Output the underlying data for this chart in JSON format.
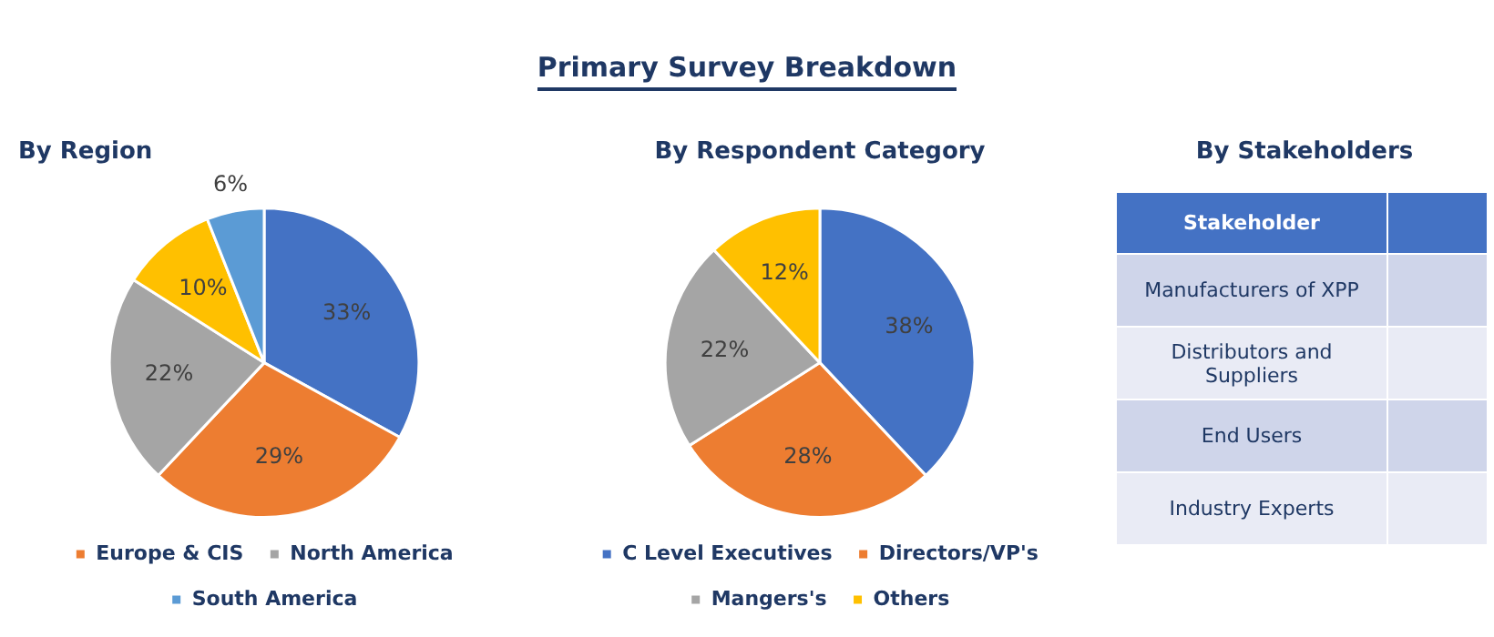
{
  "chart_data": [
    {
      "type": "other",
      "title": "Primary Survey Breakdown"
    },
    {
      "type": "pie",
      "title": "By Region",
      "categories": [
        null,
        "Europe & CIS",
        "North America",
        null,
        "South America"
      ],
      "values": [
        33,
        29,
        22,
        10,
        6
      ],
      "colors": [
        "#4472c4",
        "#ed7d31",
        "#a5a5a5",
        "#ffc000",
        "#5b9bd5"
      ],
      "value_labels": [
        "33%",
        "29%",
        "22%",
        "10%",
        "6%"
      ],
      "legend": "bottom"
    },
    {
      "type": "pie",
      "title": "By Respondent Category",
      "categories": [
        "C Level Executives",
        "Directors/VP's",
        "Mangers's",
        "Others"
      ],
      "values": [
        38,
        28,
        22,
        12
      ],
      "colors": [
        "#4472c4",
        "#ed7d31",
        "#a5a5a5",
        "#ffc000"
      ],
      "value_labels": [
        "38%",
        "28%",
        "22%",
        "12%"
      ],
      "legend": "bottom"
    },
    {
      "type": "other",
      "title": "By Stakeholders",
      "annotations": [
        "Stakeholder",
        "Manufacturers of XPP",
        "Distributors and Suppliers",
        "End Users",
        "Industry Experts"
      ]
    }
  ]
}
